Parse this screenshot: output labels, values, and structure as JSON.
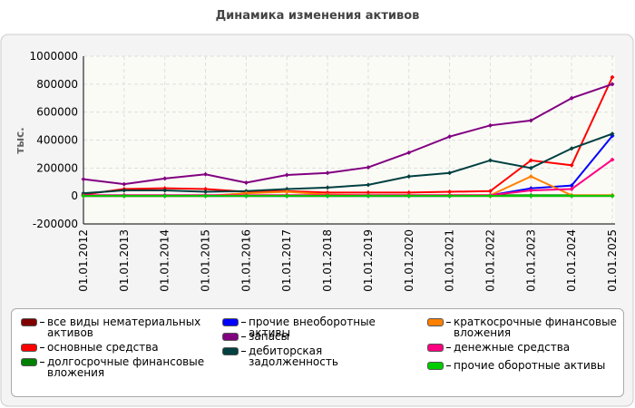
{
  "chart_data": {
    "type": "line",
    "title": "Динамика изменения активов",
    "y_label": "тыс.",
    "categories": [
      "01.01.2012",
      "01.01.2013",
      "01.01.2014",
      "01.01.2015",
      "01.01.2016",
      "01.01.2017",
      "01.01.2018",
      "01.01.2019",
      "01.01.2020",
      "01.01.2021",
      "01.01.2022",
      "01.01.2023",
      "01.01.2024",
      "01.01.2025"
    ],
    "ylim": [
      -200000,
      1000000
    ],
    "yticks": [
      -200000,
      0,
      200000,
      400000,
      600000,
      800000,
      1000000
    ],
    "grid": true,
    "series": [
      {
        "name": "все виды нематериальных активов",
        "color": "#800000",
        "values": [
          0,
          0,
          0,
          0,
          0,
          0,
          0,
          0,
          0,
          0,
          0,
          0,
          0,
          0
        ]
      },
      {
        "name": "основные средства",
        "color": "#ff0000",
        "values": [
          10000,
          50000,
          55000,
          50000,
          30000,
          35000,
          25000,
          25000,
          25000,
          30000,
          35000,
          255000,
          220000,
          850000
        ]
      },
      {
        "name": "долгосрочные финансовые вложения",
        "color": "#008000",
        "values": [
          5000,
          5000,
          5000,
          5000,
          5000,
          5000,
          5000,
          5000,
          5000,
          5000,
          5000,
          5000,
          5000,
          5000
        ]
      },
      {
        "name": "прочие внеоборотные активы",
        "color": "#0000ff",
        "values": [
          0,
          0,
          0,
          0,
          0,
          0,
          0,
          0,
          0,
          0,
          5000,
          55000,
          75000,
          430000
        ]
      },
      {
        "name": "запасы",
        "color": "#800080",
        "values": [
          120000,
          85000,
          125000,
          155000,
          95000,
          150000,
          165000,
          205000,
          310000,
          425000,
          505000,
          540000,
          700000,
          800000
        ]
      },
      {
        "name": "дебиторская задолженность",
        "color": "#004040",
        "values": [
          20000,
          40000,
          40000,
          30000,
          35000,
          50000,
          60000,
          80000,
          140000,
          165000,
          255000,
          200000,
          340000,
          445000
        ]
      },
      {
        "name": "краткосрочные финансовые вложения",
        "color": "#ff8000",
        "values": [
          0,
          0,
          0,
          0,
          20000,
          30000,
          10000,
          5000,
          5000,
          5000,
          5000,
          140000,
          5000,
          5000
        ]
      },
      {
        "name": "денежные средства",
        "color": "#ff0080",
        "values": [
          5000,
          5000,
          5000,
          5000,
          5000,
          5000,
          5000,
          5000,
          5000,
          5000,
          5000,
          40000,
          50000,
          260000
        ]
      },
      {
        "name": "прочие оборотные активы",
        "color": "#00cc00",
        "values": [
          0,
          0,
          0,
          0,
          0,
          0,
          0,
          0,
          0,
          0,
          0,
          0,
          0,
          0
        ]
      }
    ]
  }
}
